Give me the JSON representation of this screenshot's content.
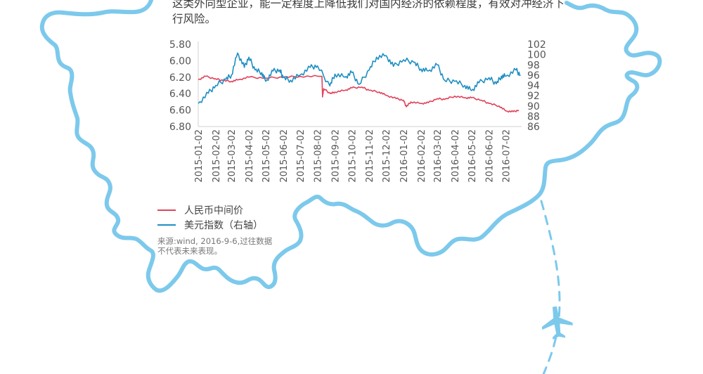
{
  "intro_text": "这类外向型企业，能一定程度上降低我们对国内经济的依赖程度，有效对冲经济下行风险。",
  "legend": [
    {
      "label": "人民币中间价",
      "color": "#e0435a"
    },
    {
      "label": "美元指数（右轴）",
      "color": "#1f8fc2"
    }
  ],
  "source_line1": "来源:wind, 2016-9-6,过往数据",
  "source_line2": "不代表未来表现。",
  "colors": {
    "map_outline": "#7cc9ec",
    "axis_text": "#555555"
  },
  "chart_data": {
    "type": "line",
    "title": "",
    "x_ticks": [
      "2015-01-02",
      "2015-02-02",
      "2015-03-02",
      "2015-04-02",
      "2015-05-02",
      "2015-06-02",
      "2015-07-02",
      "2015-08-02",
      "2015-09-02",
      "2015-10-02",
      "2015-11-02",
      "2015-12-02",
      "2016-01-02",
      "2016-02-02",
      "2016-03-02",
      "2016-04-02",
      "2016-05-02",
      "2016-06-02",
      "2016-07-02"
    ],
    "left_axis": {
      "ticks": [
        "5.80",
        "6.00",
        "6.20",
        "6.40",
        "6.60",
        "6.80"
      ],
      "range": [
        5.8,
        6.8
      ],
      "inverted": true
    },
    "right_axis": {
      "ticks": [
        "102",
        "100",
        "98",
        "96",
        "94",
        "92",
        "90",
        "88",
        "86"
      ],
      "range": [
        86,
        102
      ]
    },
    "series": [
      {
        "name": "人民币中间价",
        "axis": "left",
        "x": [
          "2015-01-02",
          "2015-01-15",
          "2015-02-02",
          "2015-02-15",
          "2015-03-02",
          "2015-03-15",
          "2015-04-02",
          "2015-05-02",
          "2015-06-02",
          "2015-07-02",
          "2015-08-10",
          "2015-08-11",
          "2015-08-13",
          "2015-08-25",
          "2015-09-02",
          "2015-09-20",
          "2015-10-02",
          "2015-10-20",
          "2015-11-02",
          "2015-11-20",
          "2015-12-02",
          "2015-12-20",
          "2016-01-02",
          "2016-01-07",
          "2016-01-15",
          "2016-02-02",
          "2016-02-15",
          "2016-03-02",
          "2016-03-15",
          "2016-04-02",
          "2016-04-20",
          "2016-05-02",
          "2016-05-20",
          "2016-06-02",
          "2016-06-20",
          "2016-07-02",
          "2016-07-15",
          "2016-07-25"
        ],
        "values": [
          6.23,
          6.19,
          6.22,
          6.24,
          6.25,
          6.23,
          6.2,
          6.21,
          6.2,
          6.19,
          6.19,
          6.44,
          6.34,
          6.4,
          6.38,
          6.36,
          6.33,
          6.32,
          6.36,
          6.38,
          6.42,
          6.46,
          6.48,
          6.56,
          6.5,
          6.52,
          6.51,
          6.46,
          6.47,
          6.43,
          6.45,
          6.45,
          6.48,
          6.52,
          6.55,
          6.61,
          6.62,
          6.6
        ]
      },
      {
        "name": "美元指数（右轴）",
        "axis": "right",
        "x": [
          "2015-01-02",
          "2015-01-20",
          "2015-02-02",
          "2015-02-20",
          "2015-03-02",
          "2015-03-13",
          "2015-03-25",
          "2015-04-02",
          "2015-04-13",
          "2015-04-25",
          "2015-05-02",
          "2015-05-15",
          "2015-05-27",
          "2015-06-02",
          "2015-06-15",
          "2015-07-02",
          "2015-07-20",
          "2015-08-02",
          "2015-08-24",
          "2015-09-02",
          "2015-09-20",
          "2015-10-02",
          "2015-10-15",
          "2015-11-02",
          "2015-11-15",
          "2015-12-02",
          "2015-12-15",
          "2016-01-02",
          "2016-01-20",
          "2016-02-02",
          "2016-02-15",
          "2016-03-02",
          "2016-03-15",
          "2016-04-02",
          "2016-04-20",
          "2016-05-02",
          "2016-05-15",
          "2016-06-02",
          "2016-06-15",
          "2016-06-24",
          "2016-07-02",
          "2016-07-20",
          "2016-07-28"
        ],
        "values": [
          90.5,
          92.5,
          94.0,
          95.2,
          96.0,
          100.3,
          97.5,
          99.5,
          97.0,
          96.5,
          94.8,
          96.8,
          97.0,
          95.5,
          95.0,
          96.0,
          97.5,
          97.8,
          93.9,
          96.2,
          95.6,
          96.5,
          94.2,
          97.0,
          99.5,
          99.8,
          97.7,
          99.0,
          98.5,
          97.2,
          96.8,
          98.0,
          95.0,
          94.8,
          94.0,
          93.0,
          94.5,
          95.5,
          94.3,
          95.8,
          95.8,
          97.0,
          96.0
        ]
      }
    ]
  }
}
